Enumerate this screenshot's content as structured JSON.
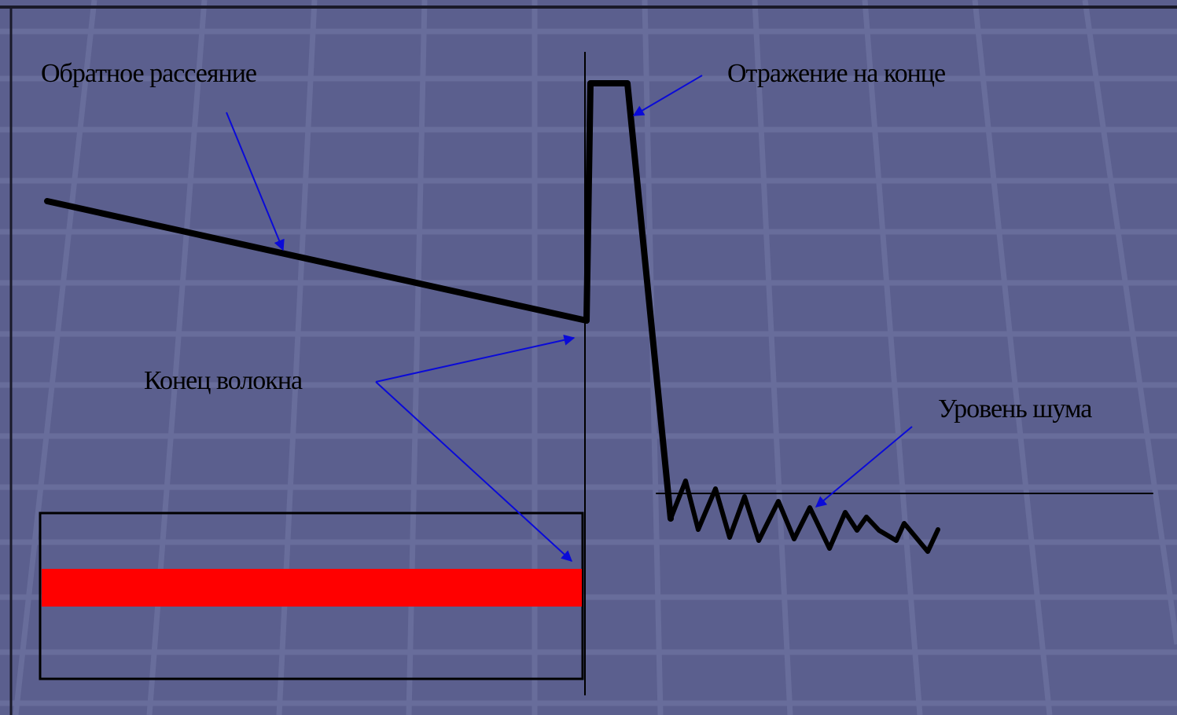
{
  "labels": {
    "backscatter": "Обратное рассеяние",
    "end_reflection": "Отражение на конце",
    "fiber_end": "Конец волокна",
    "noise_level": "Уровень шума"
  },
  "colors": {
    "background": "#5b5f8e",
    "grid": "#6d72a0",
    "trace": "#000000",
    "arrow": "#0a0ad8",
    "fiber_core": "#ff0000"
  }
}
